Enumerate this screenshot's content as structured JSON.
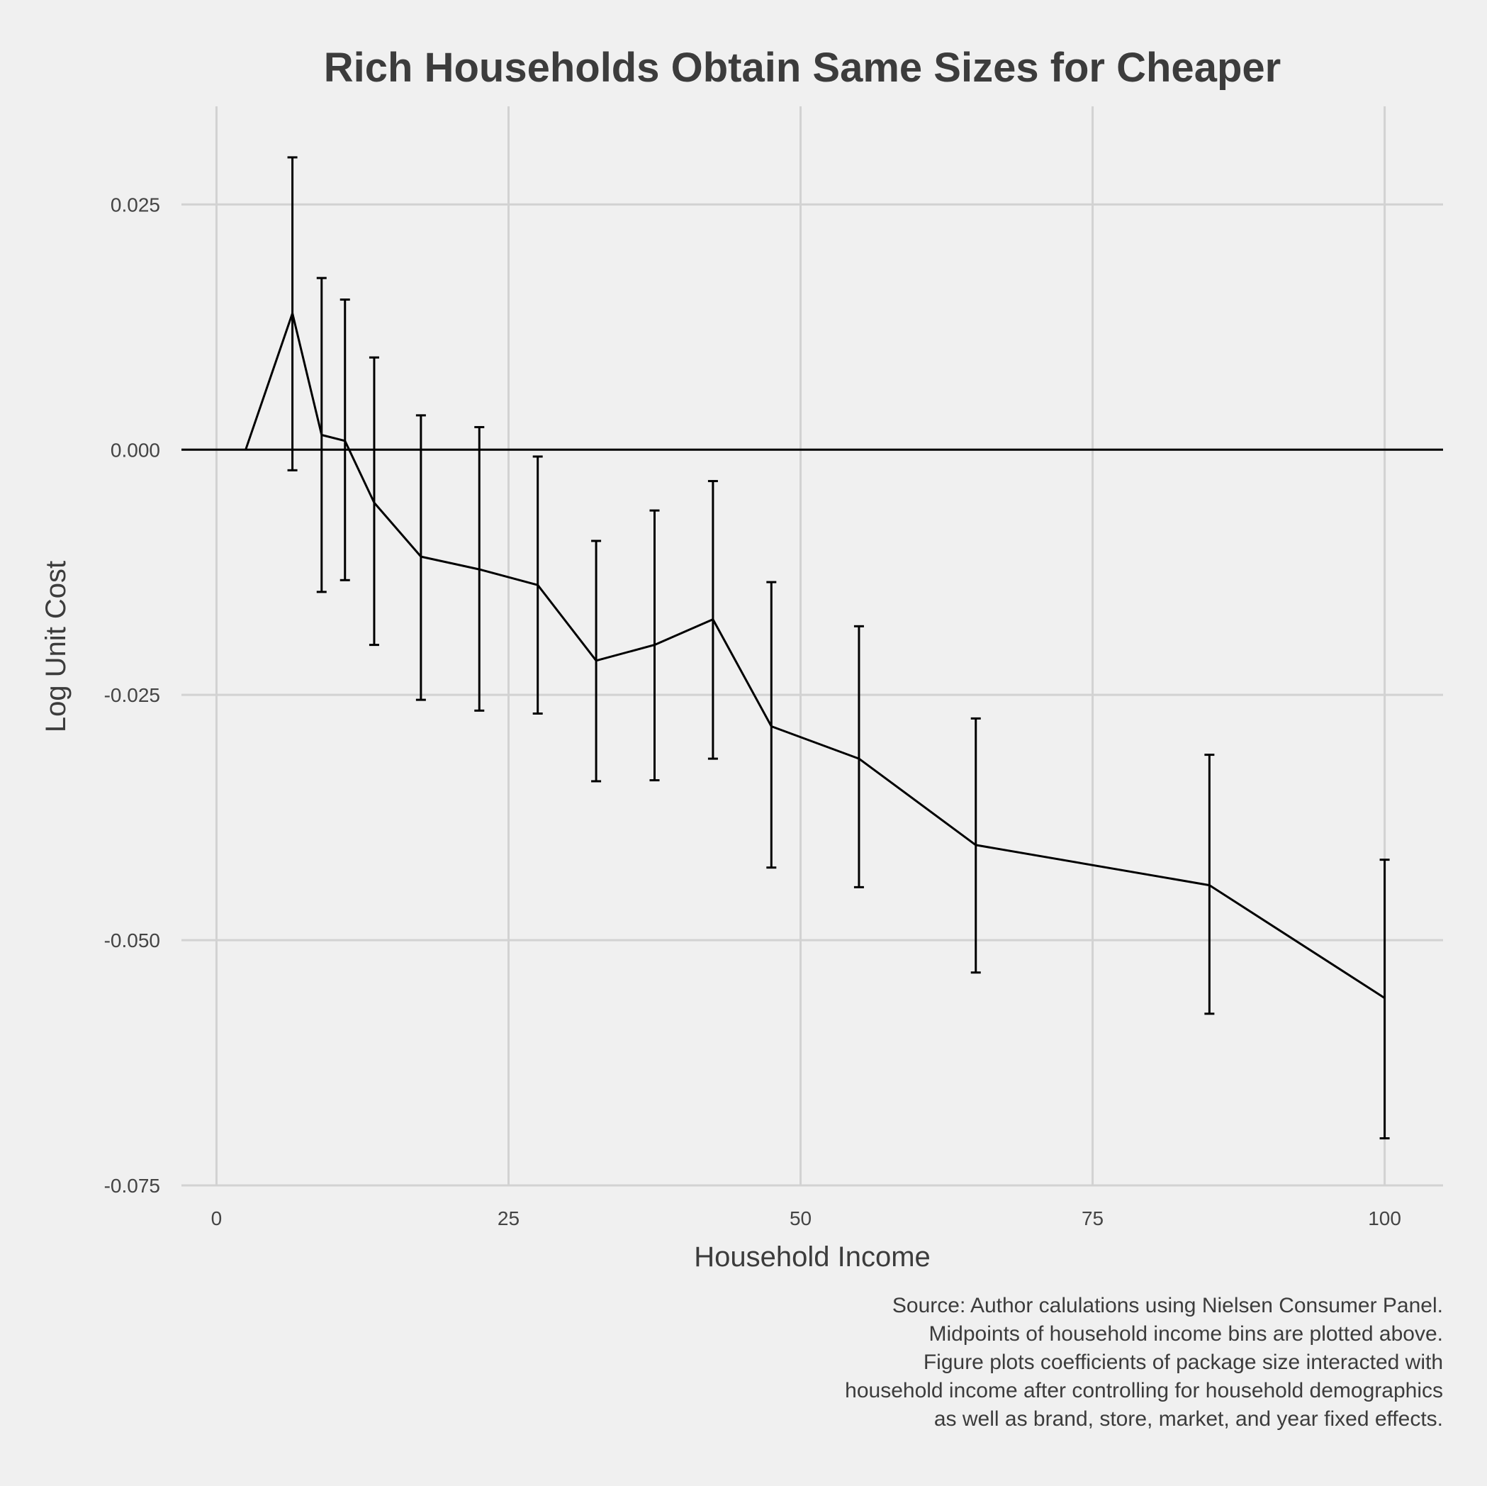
{
  "chart_data": {
    "type": "line",
    "title": "Rich Households Obtain Same Sizes for Cheaper",
    "xlabel": "Household Income",
    "ylabel": "Log Unit Cost",
    "xlim": [
      -3,
      105
    ],
    "ylim": [
      -0.075,
      0.035
    ],
    "x_ticks": [
      0,
      25,
      50,
      75,
      100
    ],
    "x_tick_labels": [
      "0",
      "25",
      "50",
      "75",
      "100"
    ],
    "y_ticks": [
      0.025,
      0.0,
      -0.025,
      -0.05,
      -0.075
    ],
    "y_tick_labels": [
      "0.025",
      "0.000",
      "-0.025",
      "-0.050",
      "-0.075"
    ],
    "grid": true,
    "reference_line_y": 0.0,
    "series": [
      {
        "x": [
          2.5,
          6.5,
          9,
          11,
          13.5,
          17.5,
          22.5,
          27.5,
          32.5,
          37.5,
          42.5,
          47.5,
          55,
          65,
          85,
          100
        ],
        "y": [
          0.0,
          0.0139,
          0.0015,
          0.0009,
          -0.0054,
          -0.0109,
          -0.0122,
          -0.0138,
          -0.0215,
          -0.0199,
          -0.0173,
          -0.0282,
          -0.0315,
          -0.0403,
          -0.0444,
          -0.0559
        ],
        "error_low": [
          null,
          -0.0021,
          -0.0145,
          -0.0133,
          -0.0199,
          -0.0255,
          -0.0266,
          -0.0269,
          -0.0338,
          -0.0337,
          -0.0315,
          -0.0426,
          -0.0446,
          -0.0533,
          -0.0575,
          -0.0702
        ],
        "error_high": [
          null,
          0.0298,
          0.0175,
          0.0153,
          0.0094,
          0.0035,
          0.0023,
          -0.0007,
          -0.0093,
          -0.0062,
          -0.0032,
          -0.0135,
          -0.018,
          -0.0274,
          -0.0311,
          -0.0418
        ]
      }
    ],
    "caption_lines": [
      "Source: Author calulations using Nielsen Consumer Panel.",
      "Midpoints of household income bins are plotted above.",
      "Figure plots coefficients of package size interacted with",
      "household income after controlling for household demographics",
      "as well as brand, store, market, and year fixed effects."
    ],
    "colors": {
      "background": "#f0f0f0",
      "grid": "#d2d2d2",
      "line": "#000000",
      "text": "#3c3c3c"
    }
  }
}
